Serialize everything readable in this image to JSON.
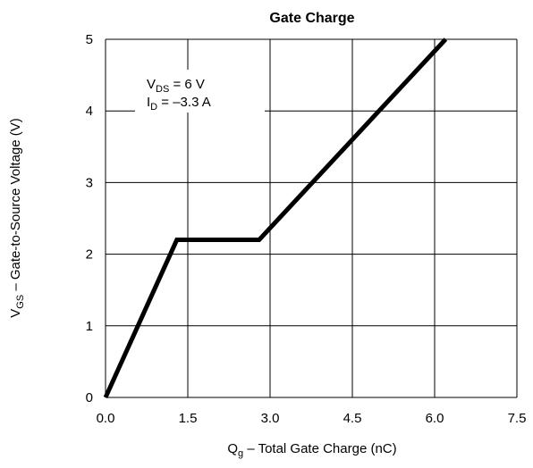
{
  "chart_data": {
    "type": "line",
    "title": "Gate Charge",
    "xlabel": {
      "main": "Q",
      "sub": "g",
      "rest": " –  Total Gate Charge (nC)"
    },
    "ylabel": {
      "main": "V",
      "sub": "GS",
      "rest": " –  Gate-to-Source Voltage (V)"
    },
    "xlim": [
      0,
      7.5
    ],
    "ylim": [
      0,
      5
    ],
    "x_ticks": [
      "0.0",
      "1.5",
      "3.0",
      "4.5",
      "6.0",
      "7.5"
    ],
    "y_ticks": [
      "0",
      "1",
      "2",
      "3",
      "4",
      "5"
    ],
    "grid": true,
    "annotations": [
      {
        "main": "V",
        "sub": "DS",
        "rest": " = 6  V"
      },
      {
        "main": "I",
        "sub": "D",
        "rest": " = –3.3   A"
      }
    ],
    "series": [
      {
        "x": [
          0,
          1.3,
          2.8,
          6.2
        ],
        "y": [
          0,
          2.2,
          2.2,
          5.0
        ]
      }
    ],
    "line_color": "#000000"
  }
}
